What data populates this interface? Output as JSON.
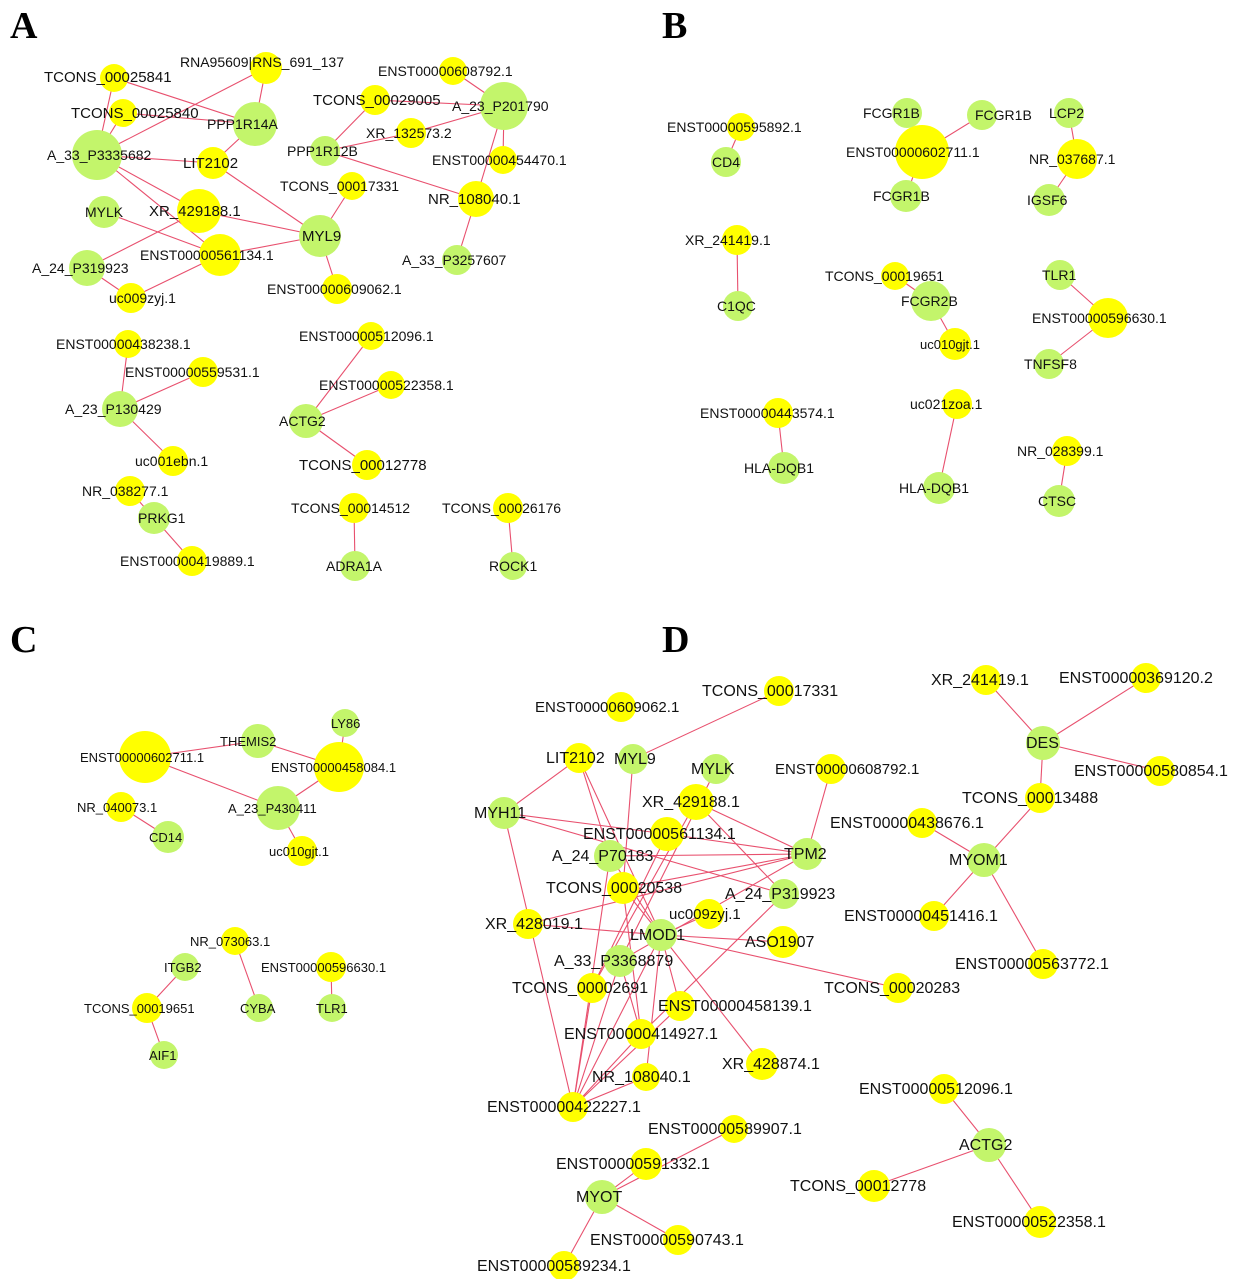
{
  "colors": {
    "lncrna": "#ffff00",
    "mrna": "#c3f56b",
    "edge": "#e8506e",
    "text": "#111111"
  },
  "node_types": {
    "lncrna": "yellow circle",
    "mrna": "green circle"
  },
  "panels": [
    {
      "id": "A",
      "letter": "A",
      "nodes": [
        {
          "id": "a1",
          "label": "TCONS_00025841",
          "type": "lncrna"
        },
        {
          "id": "a2",
          "label": "RNA95609|RNS_691_137",
          "type": "lncrna"
        },
        {
          "id": "a3",
          "label": "TCONS_00025840",
          "type": "lncrna"
        },
        {
          "id": "a4",
          "label": "PPP1R14A",
          "type": "mrna"
        },
        {
          "id": "a5",
          "label": "A_33_P3335682",
          "type": "mrna"
        },
        {
          "id": "a6",
          "label": "LIT2102",
          "type": "lncrna"
        },
        {
          "id": "a7",
          "label": "MYLK",
          "type": "mrna"
        },
        {
          "id": "a8",
          "label": "XR_429188.1",
          "type": "lncrna"
        },
        {
          "id": "a9",
          "label": "ENST00000561134.1",
          "type": "lncrna"
        },
        {
          "id": "a10",
          "label": "MYL9",
          "type": "mrna"
        },
        {
          "id": "a11",
          "label": "A_24_P319923",
          "type": "mrna"
        },
        {
          "id": "a12",
          "label": "uc009zyj.1",
          "type": "lncrna"
        },
        {
          "id": "a13",
          "label": "ENST00000609062.1",
          "type": "lncrna"
        },
        {
          "id": "a14",
          "label": "ENST00000608792.1",
          "type": "lncrna"
        },
        {
          "id": "a15",
          "label": "TCONS_00029005",
          "type": "lncrna"
        },
        {
          "id": "a16",
          "label": "A_23_P201790",
          "type": "mrna"
        },
        {
          "id": "a17",
          "label": "XR_132573.2",
          "type": "lncrna"
        },
        {
          "id": "a18",
          "label": "PPP1R12B",
          "type": "mrna"
        },
        {
          "id": "a19",
          "label": "ENST00000454470.1",
          "type": "lncrna"
        },
        {
          "id": "a20",
          "label": "TCONS_00017331",
          "type": "lncrna"
        },
        {
          "id": "a21",
          "label": "NR_108040.1",
          "type": "lncrna"
        },
        {
          "id": "a22",
          "label": "A_33_P3257607",
          "type": "mrna"
        },
        {
          "id": "a23",
          "label": "ENST00000438238.1",
          "type": "lncrna"
        },
        {
          "id": "a24",
          "label": "ENST00000559531.1",
          "type": "lncrna"
        },
        {
          "id": "a25",
          "label": "A_23_P130429",
          "type": "mrna"
        },
        {
          "id": "a26",
          "label": "uc001ebn.1",
          "type": "lncrna"
        },
        {
          "id": "a27",
          "label": "NR_038277.1",
          "type": "lncrna"
        },
        {
          "id": "a28",
          "label": "PRKG1",
          "type": "mrna"
        },
        {
          "id": "a29",
          "label": "ENST00000419889.1",
          "type": "lncrna"
        },
        {
          "id": "a30",
          "label": "ENST00000512096.1",
          "type": "lncrna"
        },
        {
          "id": "a31",
          "label": "ENST00000522358.1",
          "type": "lncrna"
        },
        {
          "id": "a32",
          "label": "ACTG2",
          "type": "mrna"
        },
        {
          "id": "a33",
          "label": "TCONS_00012778",
          "type": "lncrna"
        },
        {
          "id": "a34",
          "label": "TCONS_00014512",
          "type": "lncrna"
        },
        {
          "id": "a35",
          "label": "ADRA1A",
          "type": "mrna"
        },
        {
          "id": "a36",
          "label": "TCONS_00026176",
          "type": "lncrna"
        },
        {
          "id": "a37",
          "label": "ROCK1",
          "type": "mrna"
        }
      ],
      "edges": [
        [
          "a1",
          "a4"
        ],
        [
          "a1",
          "a5"
        ],
        [
          "a2",
          "a5"
        ],
        [
          "a2",
          "a4"
        ],
        [
          "a3",
          "a4"
        ],
        [
          "a3",
          "a5"
        ],
        [
          "a5",
          "a6"
        ],
        [
          "a4",
          "a6"
        ],
        [
          "a5",
          "a8"
        ],
        [
          "a5",
          "a9"
        ],
        [
          "a6",
          "a10"
        ],
        [
          "a7",
          "a9"
        ],
        [
          "a8",
          "a10"
        ],
        [
          "a9",
          "a10"
        ],
        [
          "a11",
          "a8"
        ],
        [
          "a11",
          "a12"
        ],
        [
          "a9",
          "a12"
        ],
        [
          "a10",
          "a13"
        ],
        [
          "a18",
          "a15"
        ],
        [
          "a18",
          "a17"
        ],
        [
          "a18",
          "a21"
        ],
        [
          "a15",
          "a16"
        ],
        [
          "a14",
          "a16"
        ],
        [
          "a17",
          "a16"
        ],
        [
          "a16",
          "a19"
        ],
        [
          "a16",
          "a21"
        ],
        [
          "a20",
          "a10"
        ],
        [
          "a21",
          "a22"
        ],
        [
          "a23",
          "a25"
        ],
        [
          "a24",
          "a25"
        ],
        [
          "a25",
          "a26"
        ],
        [
          "a27",
          "a28"
        ],
        [
          "a28",
          "a29"
        ],
        [
          "a30",
          "a32"
        ],
        [
          "a31",
          "a32"
        ],
        [
          "a32",
          "a33"
        ],
        [
          "a34",
          "a35"
        ],
        [
          "a36",
          "a37"
        ]
      ]
    },
    {
      "id": "B",
      "letter": "B",
      "nodes": [
        {
          "id": "b1",
          "label": "ENST00000595892.1",
          "type": "lncrna"
        },
        {
          "id": "b2",
          "label": "CD4",
          "type": "mrna"
        },
        {
          "id": "b3",
          "label": "FCGR1B",
          "type": "mrna"
        },
        {
          "id": "b4",
          "label": "FCGR1B",
          "type": "mrna"
        },
        {
          "id": "b5",
          "label": "ENST00000602711.1",
          "type": "lncrna"
        },
        {
          "id": "b6",
          "label": "FCGR1B",
          "type": "mrna"
        },
        {
          "id": "b7",
          "label": "LCP2",
          "type": "mrna"
        },
        {
          "id": "b8",
          "label": "NR_037687.1",
          "type": "lncrna"
        },
        {
          "id": "b9",
          "label": "IGSF6",
          "type": "mrna"
        },
        {
          "id": "b10",
          "label": "XR_241419.1",
          "type": "lncrna"
        },
        {
          "id": "b11",
          "label": "C1QC",
          "type": "mrna"
        },
        {
          "id": "b12",
          "label": "TCONS_00019651",
          "type": "lncrna"
        },
        {
          "id": "b13",
          "label": "FCGR2B",
          "type": "mrna"
        },
        {
          "id": "b14",
          "label": "uc010gjt.1",
          "type": "lncrna"
        },
        {
          "id": "b15",
          "label": "TLR1",
          "type": "mrna"
        },
        {
          "id": "b16",
          "label": "ENST00000596630.1",
          "type": "lncrna"
        },
        {
          "id": "b17",
          "label": "TNFSF8",
          "type": "mrna"
        },
        {
          "id": "b18",
          "label": "ENST00000443574.1",
          "type": "lncrna"
        },
        {
          "id": "b19",
          "label": "HLA-DQB1",
          "type": "mrna"
        },
        {
          "id": "b20",
          "label": "uc021zoa.1",
          "type": "lncrna"
        },
        {
          "id": "b21",
          "label": "HLA-DQB1",
          "type": "mrna"
        },
        {
          "id": "b22",
          "label": "NR_028399.1",
          "type": "lncrna"
        },
        {
          "id": "b23",
          "label": "CTSC",
          "type": "mrna"
        }
      ],
      "edges": [
        [
          "b1",
          "b2"
        ],
        [
          "b3",
          "b5"
        ],
        [
          "b4",
          "b5"
        ],
        [
          "b5",
          "b6"
        ],
        [
          "b7",
          "b8"
        ],
        [
          "b8",
          "b9"
        ],
        [
          "b10",
          "b11"
        ],
        [
          "b12",
          "b13"
        ],
        [
          "b13",
          "b14"
        ],
        [
          "b15",
          "b16"
        ],
        [
          "b16",
          "b17"
        ],
        [
          "b18",
          "b19"
        ],
        [
          "b20",
          "b21"
        ],
        [
          "b22",
          "b23"
        ]
      ]
    },
    {
      "id": "C",
      "letter": "C",
      "nodes": [
        {
          "id": "c1",
          "label": "THEMIS2",
          "type": "mrna"
        },
        {
          "id": "c2",
          "label": "LY86",
          "type": "mrna"
        },
        {
          "id": "c3",
          "label": "ENST00000602711.1",
          "type": "lncrna"
        },
        {
          "id": "c4",
          "label": "ENST00000458084.1",
          "type": "lncrna"
        },
        {
          "id": "c5",
          "label": "NR_040073.1",
          "type": "lncrna"
        },
        {
          "id": "c6",
          "label": "A_23_P430411",
          "type": "mrna"
        },
        {
          "id": "c7",
          "label": "CD14",
          "type": "mrna"
        },
        {
          "id": "c8",
          "label": "uc010gjt.1",
          "type": "lncrna"
        },
        {
          "id": "c9",
          "label": "NR_073063.1",
          "type": "lncrna"
        },
        {
          "id": "c10",
          "label": "ITGB2",
          "type": "mrna"
        },
        {
          "id": "c11",
          "label": "ENST00000596630.1",
          "type": "lncrna"
        },
        {
          "id": "c12",
          "label": "TCONS_00019651",
          "type": "lncrna"
        },
        {
          "id": "c13",
          "label": "CYBA",
          "type": "mrna"
        },
        {
          "id": "c14",
          "label": "TLR1",
          "type": "mrna"
        },
        {
          "id": "c15",
          "label": "AIF1",
          "type": "mrna"
        }
      ],
      "edges": [
        [
          "c3",
          "c1"
        ],
        [
          "c3",
          "c6"
        ],
        [
          "c1",
          "c4"
        ],
        [
          "c2",
          "c4"
        ],
        [
          "c4",
          "c6"
        ],
        [
          "c5",
          "c7"
        ],
        [
          "c6",
          "c8"
        ],
        [
          "c9",
          "c13"
        ],
        [
          "c10",
          "c12"
        ],
        [
          "c12",
          "c15"
        ],
        [
          "c11",
          "c14"
        ]
      ]
    },
    {
      "id": "D",
      "letter": "D",
      "nodes": [
        {
          "id": "d1",
          "label": "TCONS_00017331",
          "type": "lncrna"
        },
        {
          "id": "d2",
          "label": "ENST00000609062.1",
          "type": "lncrna"
        },
        {
          "id": "d3",
          "label": "LIT2102",
          "type": "lncrna"
        },
        {
          "id": "d4",
          "label": "MYL9",
          "type": "mrna"
        },
        {
          "id": "d5",
          "label": "MYLK",
          "type": "mrna"
        },
        {
          "id": "d6",
          "label": "ENST00000608792.1",
          "type": "lncrna"
        },
        {
          "id": "d7",
          "label": "MYH11",
          "type": "mrna"
        },
        {
          "id": "d8",
          "label": "XR_429188.1",
          "type": "lncrna"
        },
        {
          "id": "d9",
          "label": "ENST00000561134.1",
          "type": "lncrna"
        },
        {
          "id": "d10",
          "label": "A_24_P70183",
          "type": "mrna"
        },
        {
          "id": "d11",
          "label": "TPM2",
          "type": "mrna"
        },
        {
          "id": "d12",
          "label": "TCONS_00020538",
          "type": "lncrna"
        },
        {
          "id": "d13",
          "label": "A_24_P319923",
          "type": "mrna"
        },
        {
          "id": "d14",
          "label": "uc009zyj.1",
          "type": "lncrna"
        },
        {
          "id": "d15",
          "label": "XR_428019.1",
          "type": "lncrna"
        },
        {
          "id": "d16",
          "label": "LMOD1",
          "type": "mrna"
        },
        {
          "id": "d17",
          "label": "ASO1907",
          "type": "lncrna"
        },
        {
          "id": "d18",
          "label": "A_33_P3368879",
          "type": "mrna"
        },
        {
          "id": "d19",
          "label": "TCONS_00002691",
          "type": "lncrna"
        },
        {
          "id": "d20",
          "label": "TCONS_00020283",
          "type": "lncrna"
        },
        {
          "id": "d21",
          "label": "ENST00000458139.1",
          "type": "lncrna"
        },
        {
          "id": "d22",
          "label": "ENST00000414927.1",
          "type": "lncrna"
        },
        {
          "id": "d23",
          "label": "XR_428874.1",
          "type": "lncrna"
        },
        {
          "id": "d24",
          "label": "NR_108040.1",
          "type": "lncrna"
        },
        {
          "id": "d25",
          "label": "ENST00000422227.1",
          "type": "lncrna"
        },
        {
          "id": "d26",
          "label": "XR_241419.1",
          "type": "lncrna"
        },
        {
          "id": "d27",
          "label": "ENST00000369120.2",
          "type": "lncrna"
        },
        {
          "id": "d28",
          "label": "DES",
          "type": "mrna"
        },
        {
          "id": "d29",
          "label": "ENST00000580854.1",
          "type": "lncrna"
        },
        {
          "id": "d30",
          "label": "TCONS_00013488",
          "type": "lncrna"
        },
        {
          "id": "d31",
          "label": "ENST00000438676.1",
          "type": "lncrna"
        },
        {
          "id": "d32",
          "label": "MYOM1",
          "type": "mrna"
        },
        {
          "id": "d33",
          "label": "ENST00000451416.1",
          "type": "lncrna"
        },
        {
          "id": "d34",
          "label": "ENST00000563772.1",
          "type": "lncrna"
        },
        {
          "id": "d35",
          "label": "ENST00000589907.1",
          "type": "lncrna"
        },
        {
          "id": "d36",
          "label": "ENST00000591332.1",
          "type": "lncrna"
        },
        {
          "id": "d37",
          "label": "MYOT",
          "type": "mrna"
        },
        {
          "id": "d38",
          "label": "ENST00000590743.1",
          "type": "lncrna"
        },
        {
          "id": "d39",
          "label": "ENST00000589234.1",
          "type": "lncrna"
        },
        {
          "id": "d40",
          "label": "ENST00000512096.1",
          "type": "lncrna"
        },
        {
          "id": "d41",
          "label": "ACTG2",
          "type": "mrna"
        },
        {
          "id": "d42",
          "label": "TCONS_00012778",
          "type": "lncrna"
        },
        {
          "id": "d43",
          "label": "ENST00000522358.1",
          "type": "lncrna"
        }
      ],
      "edges": [
        [
          "d1",
          "d4"
        ],
        [
          "d3",
          "d7"
        ],
        [
          "d3",
          "d10"
        ],
        [
          "d3",
          "d16"
        ],
        [
          "d4",
          "d12"
        ],
        [
          "d5",
          "d18"
        ],
        [
          "d6",
          "d11"
        ],
        [
          "d7",
          "d9"
        ],
        [
          "d7",
          "d25"
        ],
        [
          "d7",
          "d13"
        ],
        [
          "d8",
          "d13"
        ],
        [
          "d8",
          "d11"
        ],
        [
          "d9",
          "d11"
        ],
        [
          "d9",
          "d19"
        ],
        [
          "d10",
          "d11"
        ],
        [
          "d10",
          "d25"
        ],
        [
          "d10",
          "d16"
        ],
        [
          "d12",
          "d11"
        ],
        [
          "d12",
          "d16"
        ],
        [
          "d12",
          "d22"
        ],
        [
          "d14",
          "d16"
        ],
        [
          "d15",
          "d16"
        ],
        [
          "d15",
          "d11"
        ],
        [
          "d16",
          "d17"
        ],
        [
          "d16",
          "d20"
        ],
        [
          "d16",
          "d21"
        ],
        [
          "d16",
          "d23"
        ],
        [
          "d16",
          "d25"
        ],
        [
          "d16",
          "d24"
        ],
        [
          "d18",
          "d11"
        ],
        [
          "d18",
          "d25"
        ],
        [
          "d18",
          "d22"
        ],
        [
          "d19",
          "d25"
        ],
        [
          "d21",
          "d25"
        ],
        [
          "d22",
          "d25"
        ],
        [
          "d24",
          "d25"
        ],
        [
          "d8",
          "d19"
        ],
        [
          "d13",
          "d22"
        ],
        [
          "d26",
          "d28"
        ],
        [
          "d27",
          "d28"
        ],
        [
          "d28",
          "d29"
        ],
        [
          "d28",
          "d30"
        ],
        [
          "d30",
          "d32"
        ],
        [
          "d31",
          "d32"
        ],
        [
          "d32",
          "d33"
        ],
        [
          "d32",
          "d34"
        ],
        [
          "d35",
          "d37"
        ],
        [
          "d36",
          "d37"
        ],
        [
          "d37",
          "d38"
        ],
        [
          "d37",
          "d39"
        ],
        [
          "d40",
          "d41"
        ],
        [
          "d41",
          "d42"
        ],
        [
          "d41",
          "d43"
        ]
      ]
    }
  ]
}
